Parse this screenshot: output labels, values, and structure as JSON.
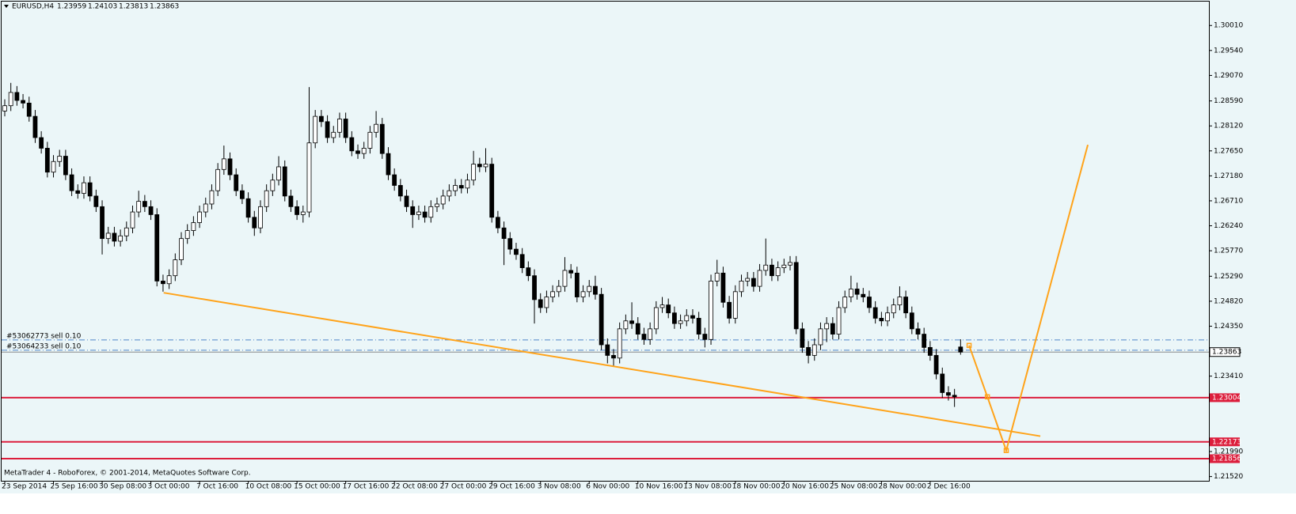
{
  "chart_data": {
    "type": "candlestick",
    "title": "EURUSD,H4",
    "footer": "MetaTrader 4 - RoboForex, © 2001-2014, MetaQuotes Software Corp.",
    "categories": [
      "23 Sep 2014",
      null,
      null,
      null,
      null,
      null,
      null,
      null,
      "25 Sep 16:00",
      null,
      null,
      null,
      null,
      null,
      null,
      null,
      "30 Sep 08:00",
      null,
      null,
      null,
      null,
      null,
      null,
      null,
      "3 Oct 00:00",
      null,
      null,
      null,
      null,
      null,
      null,
      null,
      "7 Oct 16:00",
      null,
      null,
      null,
      null,
      null,
      null,
      null,
      "10 Oct 08:00",
      null,
      null,
      null,
      null,
      null,
      null,
      null,
      "15 Oct 00:00",
      null,
      null,
      null,
      null,
      null,
      null,
      null,
      "17 Oct 16:00",
      null,
      null,
      null,
      null,
      null,
      null,
      null,
      "22 Oct 08:00",
      null,
      null,
      null,
      null,
      null,
      null,
      null,
      "27 Oct 00:00",
      null,
      null,
      null,
      null,
      null,
      null,
      null,
      "29 Oct 16:00",
      null,
      null,
      null,
      null,
      null,
      null,
      null,
      "3 Nov 08:00",
      null,
      null,
      null,
      null,
      null,
      null,
      null,
      "6 Nov 00:00",
      null,
      null,
      null,
      null,
      null,
      null,
      null,
      "10 Nov 16:00",
      null,
      null,
      null,
      null,
      null,
      null,
      null,
      "13 Nov 08:00",
      null,
      null,
      null,
      null,
      null,
      null,
      null,
      "18 Nov 00:00",
      null,
      null,
      null,
      null,
      null,
      null,
      null,
      "20 Nov 16:00",
      null,
      null,
      null,
      null,
      null,
      null,
      null,
      "25 Nov 08:00",
      null,
      null,
      null,
      null,
      null,
      null,
      null,
      "28 Nov 00:00",
      null,
      null,
      null,
      null,
      null,
      null,
      null,
      "2 Dec 16:00",
      null,
      null,
      null,
      null,
      null
    ],
    "open": [
      1.284,
      1.285,
      1.2875,
      1.286,
      1.2855,
      1.283,
      1.279,
      1.277,
      1.2725,
      1.2745,
      1.2755,
      1.272,
      1.269,
      1.2685,
      1.2705,
      1.268,
      1.266,
      1.26,
      1.261,
      1.2595,
      1.2605,
      1.262,
      1.265,
      1.267,
      1.266,
      1.2645,
      1.252,
      1.2515,
      1.253,
      1.256,
      1.26,
      1.2615,
      1.263,
      1.265,
      1.2665,
      1.269,
      1.273,
      1.275,
      1.272,
      1.269,
      1.2675,
      1.264,
      1.262,
      1.266,
      1.269,
      1.271,
      1.2735,
      1.268,
      1.266,
      1.2645,
      1.265,
      1.278,
      1.283,
      1.282,
      1.279,
      1.28,
      1.2825,
      1.279,
      1.2765,
      1.276,
      1.277,
      1.28,
      1.2815,
      1.276,
      1.272,
      1.27,
      1.268,
      1.266,
      1.2645,
      1.265,
      1.264,
      1.266,
      1.2665,
      1.268,
      1.269,
      1.27,
      1.2695,
      1.271,
      1.274,
      1.2735,
      1.274,
      1.264,
      1.262,
      1.26,
      1.258,
      1.257,
      1.2545,
      1.253,
      1.2485,
      1.247,
      1.249,
      1.25,
      1.251,
      1.254,
      1.2535,
      1.249,
      1.25,
      1.251,
      1.2495,
      1.24,
      1.238,
      1.2375,
      1.243,
      1.2445,
      1.244,
      1.242,
      1.241,
      1.243,
      1.247,
      1.2475,
      1.246,
      1.244,
      1.2445,
      1.2455,
      1.245,
      1.242,
      1.241,
      1.252,
      1.2535,
      1.248,
      1.245,
      1.25,
      1.252,
      1.2525,
      1.251,
      1.254,
      1.255,
      1.253,
      1.2545,
      1.255,
      1.2555,
      1.243,
      1.2395,
      1.238,
      1.24,
      1.243,
      1.244,
      1.242,
      1.247,
      1.249,
      1.2505,
      1.2495,
      1.249,
      1.247,
      1.245,
      1.2445,
      1.246,
      1.2475,
      1.249,
      1.246,
      1.243,
      1.242,
      1.2395,
      1.238,
      1.2345,
      1.231,
      1.2305,
      1.23959
    ],
    "high": [
      1.2862,
      1.2893,
      1.2887,
      1.2872,
      1.2867,
      1.2842,
      1.2802,
      1.2782,
      1.2757,
      1.2767,
      1.2767,
      1.2732,
      1.2702,
      1.2717,
      1.2717,
      1.2692,
      1.2672,
      1.2622,
      1.2622,
      1.2617,
      1.2632,
      1.2662,
      1.269,
      1.2682,
      1.2672,
      1.2657,
      1.2532,
      1.2542,
      1.2572,
      1.2612,
      1.2627,
      1.2642,
      1.2662,
      1.2677,
      1.2702,
      1.2742,
      1.2775,
      1.2762,
      1.2732,
      1.2702,
      1.2687,
      1.2652,
      1.2672,
      1.2702,
      1.2722,
      1.2755,
      1.2747,
      1.2692,
      1.2672,
      1.2662,
      1.2885,
      1.2842,
      1.2842,
      1.2832,
      1.2812,
      1.2837,
      1.2837,
      1.2802,
      1.2777,
      1.2782,
      1.2812,
      1.284,
      1.2827,
      1.2772,
      1.2732,
      1.2712,
      1.2692,
      1.2672,
      1.2662,
      1.2662,
      1.2672,
      1.2677,
      1.2692,
      1.2702,
      1.2712,
      1.2712,
      1.2722,
      1.2765,
      1.2752,
      1.277,
      1.2752,
      1.2652,
      1.2632,
      1.2612,
      1.2592,
      1.2582,
      1.2557,
      1.2542,
      1.2497,
      1.2502,
      1.2512,
      1.2522,
      1.2565,
      1.2552,
      1.2547,
      1.2512,
      1.2522,
      1.253,
      1.2507,
      1.2412,
      1.2392,
      1.2442,
      1.2457,
      1.248,
      1.2452,
      1.2432,
      1.2442,
      1.2482,
      1.249,
      1.2487,
      1.2472,
      1.2457,
      1.2467,
      1.2467,
      1.2462,
      1.2432,
      1.2532,
      1.256,
      1.2547,
      1.2492,
      1.2512,
      1.2532,
      1.2537,
      1.2537,
      1.2552,
      1.26,
      1.2562,
      1.2557,
      1.2562,
      1.2567,
      1.2567,
      1.2442,
      1.2407,
      1.2412,
      1.2442,
      1.2452,
      1.2452,
      1.2482,
      1.2502,
      1.253,
      1.2517,
      1.2507,
      1.2502,
      1.2482,
      1.2462,
      1.2472,
      1.2487,
      1.251,
      1.2502,
      1.2472,
      1.2442,
      1.2432,
      1.2407,
      1.2392,
      1.2357,
      1.2322,
      1.2317,
      1.24103
    ],
    "low": [
      1.283,
      1.284,
      1.285,
      1.2845,
      1.282,
      1.278,
      1.276,
      1.2715,
      1.2715,
      1.2735,
      1.271,
      1.268,
      1.2675,
      1.2675,
      1.267,
      1.265,
      1.257,
      1.259,
      1.2585,
      1.2585,
      1.2595,
      1.261,
      1.264,
      1.265,
      1.2635,
      1.251,
      1.25,
      1.2505,
      1.252,
      1.255,
      1.259,
      1.2605,
      1.262,
      1.264,
      1.2655,
      1.268,
      1.272,
      1.271,
      1.268,
      1.2665,
      1.263,
      1.2605,
      1.261,
      1.265,
      1.268,
      1.27,
      1.267,
      1.265,
      1.2635,
      1.263,
      1.264,
      1.277,
      1.281,
      1.278,
      1.278,
      1.279,
      1.278,
      1.2755,
      1.275,
      1.275,
      1.276,
      1.279,
      1.275,
      1.271,
      1.269,
      1.267,
      1.265,
      1.262,
      1.2635,
      1.263,
      1.263,
      1.265,
      1.2655,
      1.267,
      1.268,
      1.2685,
      1.2685,
      1.27,
      1.2725,
      1.2725,
      1.263,
      1.261,
      1.255,
      1.257,
      1.256,
      1.2535,
      1.252,
      1.244,
      1.246,
      1.246,
      1.248,
      1.249,
      1.25,
      1.2525,
      1.248,
      1.248,
      1.249,
      1.2485,
      1.239,
      1.2365,
      1.236,
      1.2365,
      1.242,
      1.243,
      1.241,
      1.24,
      1.24,
      1.242,
      1.246,
      1.245,
      1.243,
      1.243,
      1.2435,
      1.244,
      1.241,
      1.2395,
      1.24,
      1.251,
      1.247,
      1.244,
      1.244,
      1.249,
      1.251,
      1.25,
      1.25,
      1.253,
      1.252,
      1.252,
      1.2535,
      1.254,
      1.242,
      1.2385,
      1.2365,
      1.237,
      1.239,
      1.2405,
      1.241,
      1.241,
      1.246,
      1.248,
      1.2485,
      1.248,
      1.246,
      1.244,
      1.2435,
      1.2435,
      1.245,
      1.2465,
      1.245,
      1.242,
      1.241,
      1.2385,
      1.237,
      1.2335,
      1.23,
      1.2295,
      1.2283,
      1.23813
    ],
    "close": [
      1.285,
      1.2875,
      1.286,
      1.2855,
      1.283,
      1.279,
      1.277,
      1.2725,
      1.2745,
      1.2755,
      1.272,
      1.269,
      1.2685,
      1.2705,
      1.268,
      1.266,
      1.26,
      1.261,
      1.2595,
      1.2605,
      1.262,
      1.265,
      1.267,
      1.266,
      1.2645,
      1.252,
      1.2515,
      1.253,
      1.256,
      1.26,
      1.2615,
      1.263,
      1.265,
      1.2665,
      1.269,
      1.273,
      1.275,
      1.272,
      1.269,
      1.2675,
      1.264,
      1.262,
      1.266,
      1.269,
      1.271,
      1.2735,
      1.268,
      1.266,
      1.2645,
      1.265,
      1.278,
      1.283,
      1.282,
      1.279,
      1.28,
      1.2825,
      1.279,
      1.2765,
      1.276,
      1.277,
      1.28,
      1.2815,
      1.276,
      1.272,
      1.27,
      1.268,
      1.266,
      1.2645,
      1.265,
      1.264,
      1.266,
      1.2665,
      1.268,
      1.269,
      1.27,
      1.2695,
      1.271,
      1.274,
      1.2735,
      1.274,
      1.264,
      1.262,
      1.26,
      1.258,
      1.257,
      1.2545,
      1.253,
      1.2485,
      1.247,
      1.249,
      1.25,
      1.251,
      1.254,
      1.2535,
      1.249,
      1.25,
      1.251,
      1.2495,
      1.24,
      1.238,
      1.2375,
      1.243,
      1.2445,
      1.244,
      1.242,
      1.241,
      1.243,
      1.247,
      1.2475,
      1.246,
      1.244,
      1.2445,
      1.2455,
      1.245,
      1.242,
      1.241,
      1.252,
      1.2535,
      1.248,
      1.245,
      1.25,
      1.252,
      1.2525,
      1.251,
      1.254,
      1.255,
      1.253,
      1.2545,
      1.255,
      1.2555,
      1.243,
      1.2395,
      1.238,
      1.24,
      1.243,
      1.244,
      1.242,
      1.247,
      1.249,
      1.2505,
      1.2495,
      1.249,
      1.247,
      1.245,
      1.2445,
      1.246,
      1.2475,
      1.249,
      1.246,
      1.243,
      1.242,
      1.2395,
      1.238,
      1.2345,
      1.231,
      1.2305,
      1.2302,
      1.23863
    ],
    "up_color": "#ffffff",
    "down_color": "#000000",
    "grid": false,
    "ylim": [
      1.2144,
      1.3049
    ],
    "yticks": [
      {
        "value": 1.3001,
        "label": "1.30010"
      },
      {
        "value": 1.2954,
        "label": "1.29540"
      },
      {
        "value": 1.2907,
        "label": "1.29070"
      },
      {
        "value": 1.2859,
        "label": "1.28590"
      },
      {
        "value": 1.2812,
        "label": "1.28120"
      },
      {
        "value": 1.2765,
        "label": "1.27650"
      },
      {
        "value": 1.2718,
        "label": "1.27180"
      },
      {
        "value": 1.2671,
        "label": "1.26710"
      },
      {
        "value": 1.2624,
        "label": "1.26240"
      },
      {
        "value": 1.2577,
        "label": "1.25770"
      },
      {
        "value": 1.2529,
        "label": "1.25290"
      },
      {
        "value": 1.2482,
        "label": "1.24820"
      },
      {
        "value": 1.2435,
        "label": "1.24350"
      },
      {
        "value": 1.2341,
        "label": "1.23410"
      },
      {
        "value": 1.2199,
        "label": "1.21990"
      },
      {
        "value": 1.2152,
        "label": "1.21520"
      }
    ],
    "levels": [
      {
        "value": 1.23004,
        "color": "#dc1e3c"
      },
      {
        "value": 1.22173,
        "color": "#dc1e3c"
      },
      {
        "value": 1.21856,
        "color": "#dc1e3c"
      }
    ],
    "orders": [
      {
        "label": "#53062773 sell 0.10",
        "value": 1.24092,
        "color": "#4f86c9"
      },
      {
        "label": "#53064233 sell 0.10",
        "value": 1.23898,
        "color": "#4f86c9"
      }
    ],
    "trendlines": [
      {
        "x": [
          26.1,
          170.1
        ],
        "y": [
          1.2498,
          1.2228
        ],
        "color": "#ffa31a"
      },
      {
        "x": [
          158.4,
          161.4,
          164.5,
          177.9
        ],
        "y": [
          1.23988,
          1.23021,
          1.2201,
          1.27765
        ],
        "color": "#ffa31a"
      }
    ]
  }
}
